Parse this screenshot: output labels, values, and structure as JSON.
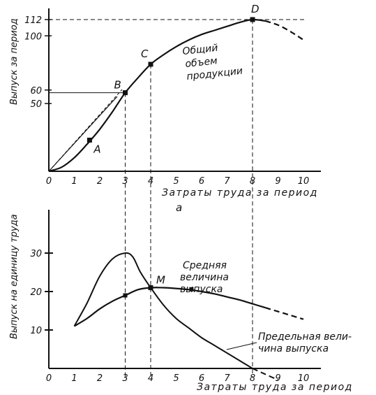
{
  "chart_data": [
    {
      "type": "line",
      "title": "",
      "xlabel": "Затраты труда за период",
      "ylabel": "Выпуск за период",
      "xlim": [
        0,
        10
      ],
      "ylim": [
        0,
        112
      ],
      "x_ticks": [
        "0",
        "1",
        "2",
        "3",
        "4",
        "5",
        "6",
        "7",
        "8",
        "9",
        "10"
      ],
      "y_ticks": [
        "50",
        "60",
        "100",
        "112"
      ],
      "panel_label": "а",
      "series": [
        {
          "name": "Общий объем продукции",
          "x": [
            0,
            0.5,
            1,
            1.5,
            2,
            2.5,
            3,
            3.5,
            4,
            4.5,
            5,
            5.5,
            6,
            6.5,
            7,
            7.5,
            8,
            8.5,
            9,
            9.5,
            10
          ],
          "y": [
            0,
            3,
            10,
            20,
            31,
            44,
            58,
            69,
            79,
            86,
            92,
            97,
            101,
            104,
            107,
            110,
            112,
            111,
            108,
            103,
            97
          ]
        }
      ],
      "points": [
        {
          "label": "A",
          "x": 1.6,
          "y": 23
        },
        {
          "label": "B",
          "x": 3,
          "y": 58
        },
        {
          "label": "C",
          "x": 4,
          "y": 79
        },
        {
          "label": "D",
          "x": 8,
          "y": 112
        }
      ]
    },
    {
      "type": "line",
      "title": "",
      "xlabel": "Затраты труда за период",
      "ylabel": "Выпуск на единицу труда",
      "xlim": [
        0,
        10
      ],
      "ylim": [
        0,
        35
      ],
      "x_ticks": [
        "0",
        "1",
        "2",
        "3",
        "4",
        "5",
        "6",
        "7",
        "8",
        "9",
        "10"
      ],
      "y_ticks": [
        "10",
        "20",
        "30"
      ],
      "series": [
        {
          "name": "Средняя величина выпуска",
          "x": [
            1,
            1.5,
            2,
            2.5,
            3,
            3.5,
            4,
            4.5,
            5,
            5.5,
            6,
            6.5,
            7,
            7.5,
            8,
            8.5,
            9,
            9.5,
            10
          ],
          "y": [
            11,
            13,
            15.5,
            17.5,
            19,
            20.5,
            21,
            21,
            20.8,
            20.5,
            20,
            19.4,
            18.6,
            17.8,
            16.8,
            15.8,
            14.8,
            13.8,
            12.8
          ]
        },
        {
          "name": "Предельная величина выпуска",
          "x": [
            1,
            1.5,
            2,
            2.5,
            3,
            3.3,
            3.6,
            4,
            4.5,
            5,
            5.5,
            6,
            6.5,
            7,
            7.5,
            8,
            8.5,
            9
          ],
          "y": [
            11,
            17,
            24,
            28.5,
            30,
            29,
            25,
            21,
            16.5,
            13,
            10.5,
            8,
            6,
            4,
            2,
            0,
            -1.5,
            -3
          ]
        }
      ],
      "points": [
        {
          "label": "M",
          "x": 4,
          "y": 21
        }
      ]
    }
  ],
  "annotations": {
    "total_output": [
      "Общий",
      "объем",
      "продукции"
    ],
    "average_output": [
      "Средняя",
      "величина",
      "выпуска"
    ],
    "marginal_output": [
      "Предельная вели-",
      "чина выпуска"
    ]
  }
}
